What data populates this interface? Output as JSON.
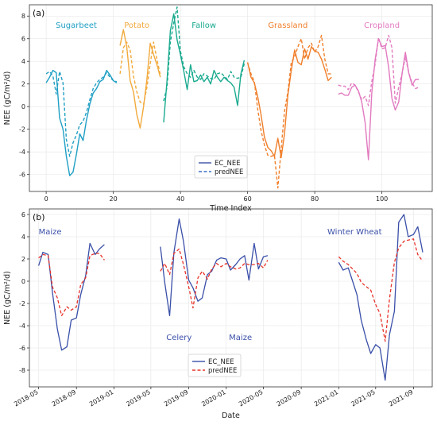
{
  "chart_data": [
    {
      "type": "line",
      "panel_label": "(a)",
      "xlabel": "Time Index",
      "ylabel": "NEE (gC/m²/d)",
      "xlim": [
        -5,
        115
      ],
      "ylim": [
        -7.5,
        9
      ],
      "xticks": [
        0,
        20,
        40,
        60,
        80,
        100
      ],
      "yticks": [
        -6,
        -4,
        -2,
        0,
        2,
        4,
        6,
        8
      ],
      "grid": true,
      "legend": {
        "position": "lower-center",
        "entries": [
          "EC_NEE",
          "predNEE"
        ]
      },
      "groups": [
        {
          "name": "Sugarbeet",
          "color": "#1f9fc4",
          "x": [
            0,
            1,
            2,
            3,
            4,
            5,
            6,
            7,
            8,
            9,
            10,
            11,
            12,
            13,
            14,
            15,
            16,
            17,
            18,
            19,
            20,
            21
          ],
          "EC_NEE": [
            2.1,
            2.6,
            3.2,
            3.0,
            -1.0,
            -2.0,
            -4.4,
            -6.1,
            -5.8,
            -4.2,
            -2.4,
            -3.0,
            -1.2,
            0.2,
            1.2,
            1.6,
            2.2,
            2.4,
            3.2,
            2.8,
            2.3,
            2.1
          ],
          "predNEE": [
            2.9,
            3.1,
            2.7,
            1.1,
            3.1,
            2.1,
            -2.9,
            -4.4,
            -3.2,
            -2.5,
            -1.6,
            -1.3,
            -0.5,
            0.6,
            1.6,
            2.1,
            2.4,
            2.6,
            3.0,
            2.6,
            2.3,
            2.2
          ]
        },
        {
          "name": "Potato",
          "color": "#f2a93b",
          "x": [
            22,
            23,
            24,
            25,
            26,
            27,
            28,
            29,
            30,
            31,
            32,
            33,
            34
          ],
          "EC_NEE": [
            5.4,
            6.8,
            5.3,
            2.3,
            1.3,
            -0.7,
            -1.9,
            0.0,
            2.4,
            5.6,
            4.6,
            3.7,
            2.6
          ],
          "predNEE": [
            2.9,
            5.2,
            5.7,
            5.0,
            2.7,
            1.3,
            0.4,
            0.2,
            1.7,
            3.8,
            5.7,
            4.2,
            2.8
          ]
        },
        {
          "name": "Fallow",
          "color": "#1aaa8f",
          "x": [
            35,
            36,
            37,
            38,
            39,
            40,
            41,
            42,
            43,
            44,
            45,
            46,
            47,
            48,
            49,
            50,
            51,
            52,
            53,
            54,
            55,
            56,
            57,
            58,
            59
          ],
          "EC_NEE": [
            -1.4,
            2.3,
            6.7,
            8.2,
            5.9,
            4.6,
            3.1,
            1.5,
            3.7,
            2.2,
            2.3,
            2.8,
            2.2,
            2.6,
            2.0,
            3.2,
            2.6,
            2.2,
            2.6,
            2.3,
            2.1,
            1.7,
            0.1,
            2.9,
            4.1
          ],
          "predNEE": [
            0.5,
            1.7,
            5.7,
            7.4,
            8.8,
            4.9,
            3.5,
            2.9,
            2.6,
            3.2,
            2.6,
            2.4,
            2.9,
            2.7,
            2.5,
            2.4,
            2.9,
            3.0,
            2.7,
            2.4,
            3.1,
            2.6,
            2.5,
            2.6,
            3.8
          ]
        },
        {
          "name": "Grassland",
          "color": "#f07f2b",
          "x": [
            60,
            61,
            62,
            63,
            64,
            65,
            66,
            67,
            68,
            69,
            70,
            71,
            72,
            73,
            74,
            75,
            76,
            77,
            78,
            79,
            80,
            81,
            82,
            83,
            84,
            85
          ],
          "EC_NEE": [
            3.9,
            2.6,
            2.1,
            0.9,
            -0.7,
            -2.7,
            -3.6,
            -3.9,
            -4.4,
            -2.8,
            -4.5,
            -2.4,
            1.0,
            3.2,
            5.0,
            3.9,
            3.7,
            5.1,
            4.2,
            5.3,
            4.9,
            4.8,
            4.2,
            3.3,
            2.3,
            2.6
          ],
          "predNEE": [
            3.9,
            2.9,
            2.2,
            -0.2,
            -2.1,
            -3.4,
            -4.3,
            -4.4,
            -4.3,
            -7.2,
            -3.7,
            -0.4,
            1.3,
            3.9,
            4.4,
            5.3,
            6.0,
            4.2,
            5.2,
            5.6,
            4.8,
            5.3,
            6.3,
            4.2,
            2.9,
            2.9
          ]
        },
        {
          "name": "Cropland",
          "color": "#e27ac0",
          "x": [
            87,
            88,
            89,
            90,
            91,
            92,
            93,
            94,
            95,
            96,
            97,
            98,
            99,
            100,
            101,
            102,
            103,
            104,
            105,
            106,
            107,
            108,
            109,
            110,
            111
          ],
          "EC_NEE": [
            1.1,
            1.2,
            1.0,
            1.0,
            1.7,
            1.9,
            1.4,
            0.4,
            -1.4,
            -4.7,
            1.2,
            4.2,
            6.0,
            5.3,
            5.4,
            3.5,
            0.7,
            -0.3,
            0.4,
            2.9,
            4.8,
            3.0,
            1.9,
            2.4,
            2.4
          ],
          "predNEE": [
            1.9,
            1.8,
            1.8,
            1.5,
            2.1,
            1.9,
            1.3,
            0.6,
            0.9,
            0.1,
            2.2,
            3.8,
            6.1,
            5.1,
            5.2,
            6.3,
            5.2,
            0.3,
            1.7,
            2.9,
            4.4,
            3.0,
            2.1,
            1.6,
            1.7
          ]
        }
      ]
    },
    {
      "type": "line",
      "panel_label": "(b)",
      "xlabel": "Date",
      "ylabel": "NEE (gC/m²/d)",
      "xlim": [
        "2018-04-01",
        "2021-11-01"
      ],
      "ylim": [
        -9.5,
        6.5
      ],
      "xticks": [
        "2018-05",
        "2018-09",
        "2019-01",
        "2019-05",
        "2019-09",
        "2020-01",
        "2020-05",
        "2020-09",
        "2021-01",
        "2021-05",
        "2021-09"
      ],
      "yticks": [
        -8,
        -6,
        -4,
        -2,
        0,
        2,
        4,
        6
      ],
      "grid": true,
      "legend": {
        "position": "lower-center",
        "entries": [
          "EC_NEE",
          "predNEE"
        ]
      },
      "colors": {
        "EC_NEE": "#3a4fa8",
        "predNEE": "#e8332a"
      },
      "annotations": [
        "Maize",
        "Celery",
        "Maize",
        "Winter Wheat"
      ],
      "segments": [
        {
          "dates": [
            "2018-05-01",
            "2018-05-15",
            "2018-06-01",
            "2018-06-15",
            "2018-07-01",
            "2018-07-15",
            "2018-08-01",
            "2018-08-15",
            "2018-09-01",
            "2018-09-15",
            "2018-10-01",
            "2018-10-15",
            "2018-11-01",
            "2018-11-15",
            "2018-12-01"
          ],
          "EC_NEE": [
            1.4,
            2.6,
            2.4,
            -1.0,
            -4.3,
            -6.2,
            -5.9,
            -3.5,
            -3.3,
            -1.2,
            0.5,
            3.4,
            2.4,
            2.9,
            3.3
          ],
          "predNEE": [
            2.1,
            2.4,
            2.3,
            -0.5,
            -1.5,
            -3.1,
            -2.3,
            -2.6,
            -2.3,
            -0.3,
            0.3,
            2.3,
            2.5,
            2.5,
            1.9
          ]
        },
        {
          "dates": [
            "2019-06-01",
            "2019-06-15",
            "2019-07-01",
            "2019-07-15",
            "2019-08-01",
            "2019-08-15",
            "2019-09-01",
            "2019-09-15",
            "2019-10-01",
            "2019-10-15",
            "2019-11-01",
            "2019-11-15",
            "2019-12-01",
            "2019-12-15",
            "2020-01-01",
            "2020-01-15",
            "2020-02-01",
            "2020-02-15",
            "2020-03-01",
            "2020-03-15",
            "2020-04-01",
            "2020-04-15",
            "2020-05-01",
            "2020-05-15"
          ],
          "EC_NEE": [
            3.1,
            -0.1,
            -3.1,
            2.6,
            5.6,
            3.6,
            0.1,
            -0.6,
            -1.8,
            -1.5,
            0.6,
            0.9,
            1.9,
            2.1,
            2.0,
            1.0,
            1.5,
            2.0,
            2.3,
            0.1,
            3.4,
            1.1,
            2.2,
            2.3
          ],
          "predNEE": [
            0.9,
            1.6,
            0.6,
            2.5,
            2.9,
            1.5,
            -0.5,
            -2.4,
            0.3,
            0.9,
            0.2,
            1.1,
            1.6,
            1.3,
            1.6,
            1.3,
            1.1,
            1.2,
            1.6,
            1.5,
            1.5,
            1.6,
            1.2,
            1.9
          ]
        },
        {
          "dates": [
            "2021-01-01",
            "2021-01-15",
            "2021-02-01",
            "2021-02-15",
            "2021-03-01",
            "2021-03-15",
            "2021-04-01",
            "2021-04-15",
            "2021-05-01",
            "2021-05-15",
            "2021-06-01",
            "2021-06-15",
            "2021-07-01",
            "2021-07-15",
            "2021-08-01",
            "2021-08-15",
            "2021-09-01",
            "2021-09-15",
            "2021-10-01"
          ],
          "EC_NEE": [
            1.7,
            1.0,
            1.2,
            0.0,
            -1.2,
            -3.5,
            -5.3,
            -6.5,
            -5.7,
            -6.0,
            -8.9,
            -4.8,
            -2.7,
            5.3,
            6.0,
            4.0,
            4.2,
            4.9,
            2.6
          ],
          "predNEE": [
            2.2,
            1.8,
            1.5,
            1.1,
            0.7,
            -0.1,
            -0.5,
            -0.8,
            -2.1,
            -2.9,
            -5.4,
            -1.6,
            1.7,
            3.0,
            3.6,
            3.7,
            3.8,
            2.4,
            1.8
          ]
        }
      ]
    }
  ]
}
